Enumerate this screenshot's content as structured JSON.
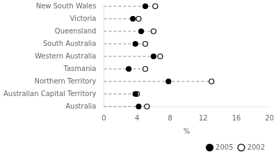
{
  "chart_data": {
    "type": "dot",
    "orientation": "horizontal",
    "categories": [
      "New South Wales",
      "Victoria",
      "Queensland",
      "South Australia",
      "Western Australia",
      "Tasmania",
      "Northern Territory",
      "Australian Capital Territory",
      "Australia"
    ],
    "series": [
      {
        "name": "2005",
        "color": "#000000",
        "marker": "filled circle",
        "values": [
          5.0,
          3.5,
          4.5,
          3.8,
          6.0,
          3.0,
          7.8,
          3.8,
          4.2
        ]
      },
      {
        "name": "2002",
        "color": "#000000",
        "marker": "open circle",
        "values": [
          6.2,
          4.2,
          6.0,
          5.0,
          6.8,
          5.0,
          13.0,
          4.0,
          5.2
        ]
      }
    ],
    "xlabel": "%",
    "xlim": [
      0,
      20
    ],
    "xticks": [
      0,
      4,
      8,
      12,
      16,
      20
    ],
    "grid": false,
    "legend": "lower right"
  }
}
